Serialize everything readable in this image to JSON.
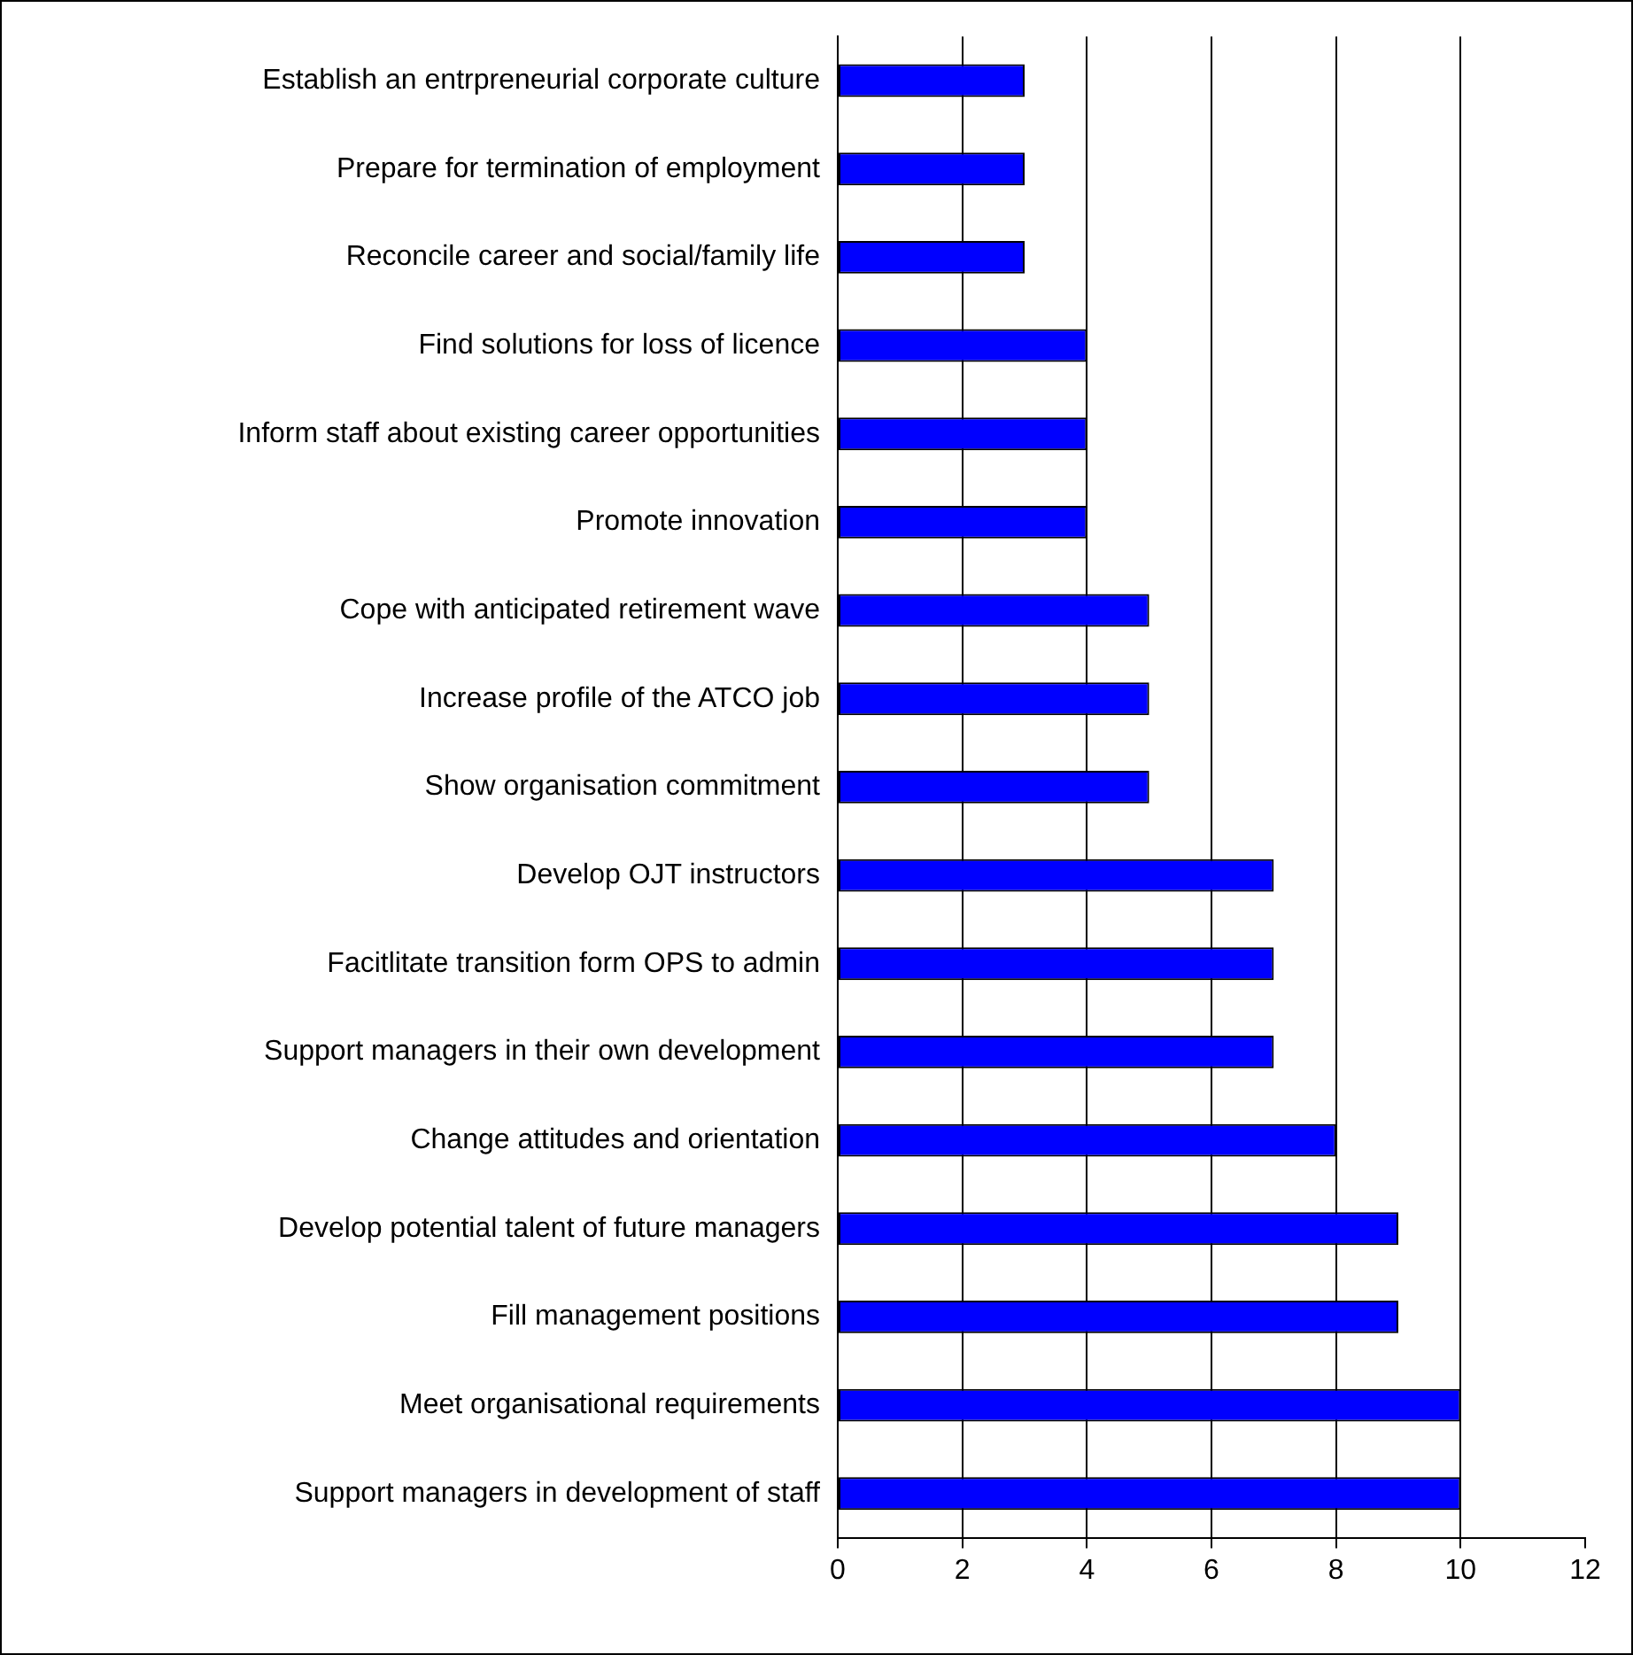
{
  "chart_data": {
    "type": "bar",
    "orientation": "horizontal",
    "categories": [
      "Establish an entrpreneurial corporate culture",
      "Prepare for termination of employment",
      "Reconcile career and social/family life",
      "Find solutions for loss of licence",
      "Inform staff about existing career opportunities",
      "Promote innovation",
      "Cope with anticipated retirement wave",
      "Increase profile of the ATCO job",
      "Show organisation commitment",
      "Develop OJT instructors",
      "Facitlitate transition form OPS to admin",
      "Support managers in their own development",
      "Change attitudes and orientation",
      "Develop potential talent of future managers",
      "Fill management positions",
      "Meet organisational requirements",
      "Support managers in development of staff"
    ],
    "values": [
      3,
      3,
      3,
      4,
      4,
      4,
      5,
      5,
      5,
      7,
      7,
      7,
      8,
      9,
      9,
      10,
      10
    ],
    "color": "#0000ff",
    "xlim": [
      0,
      12
    ],
    "xticks": [
      0,
      2,
      4,
      6,
      8,
      10,
      12
    ],
    "grid": "x"
  }
}
